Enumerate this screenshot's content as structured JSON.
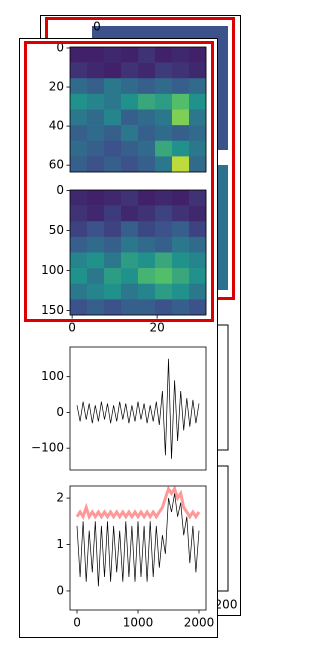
{
  "background_labels": [
    "0",
    "200"
  ],
  "chart_data": [
    {
      "type": "heatmap",
      "xlim": [
        -0.5,
        31.5
      ],
      "ylim": [
        63.5,
        -0.5
      ],
      "yticks": [
        0,
        20,
        40,
        60
      ],
      "z": [
        [
          0.1,
          0.1,
          0.12,
          0.1,
          0.15,
          0.1,
          0.12,
          0.1
        ],
        [
          0.15,
          0.12,
          0.1,
          0.15,
          0.12,
          0.18,
          0.15,
          0.12
        ],
        [
          0.35,
          0.3,
          0.4,
          0.35,
          0.3,
          0.35,
          0.3,
          0.35
        ],
        [
          0.5,
          0.45,
          0.4,
          0.5,
          0.6,
          0.55,
          0.7,
          0.5
        ],
        [
          0.4,
          0.35,
          0.45,
          0.3,
          0.35,
          0.4,
          0.8,
          0.4
        ],
        [
          0.3,
          0.35,
          0.3,
          0.4,
          0.3,
          0.35,
          0.3,
          0.35
        ],
        [
          0.35,
          0.3,
          0.25,
          0.3,
          0.35,
          0.6,
          0.5,
          0.4
        ],
        [
          0.3,
          0.25,
          0.3,
          0.25,
          0.3,
          0.4,
          0.9,
          0.35
        ]
      ]
    },
    {
      "type": "heatmap",
      "xlim": [
        -0.5,
        31.5
      ],
      "ylim": [
        155.5,
        -0.5
      ],
      "yticks": [
        0,
        50,
        100,
        150
      ],
      "xticks": [
        0,
        20
      ],
      "z": [
        [
          0.12,
          0.1,
          0.12,
          0.15,
          0.1,
          0.12,
          0.1,
          0.15
        ],
        [
          0.15,
          0.12,
          0.18,
          0.12,
          0.15,
          0.2,
          0.15,
          0.12
        ],
        [
          0.2,
          0.25,
          0.2,
          0.3,
          0.22,
          0.25,
          0.3,
          0.2
        ],
        [
          0.3,
          0.35,
          0.3,
          0.4,
          0.35,
          0.3,
          0.4,
          0.35
        ],
        [
          0.45,
          0.5,
          0.4,
          0.55,
          0.5,
          0.6,
          0.5,
          0.45
        ],
        [
          0.5,
          0.4,
          0.55,
          0.5,
          0.65,
          0.7,
          0.6,
          0.5
        ],
        [
          0.4,
          0.45,
          0.5,
          0.4,
          0.45,
          0.55,
          0.5,
          0.4
        ],
        [
          0.25,
          0.3,
          0.25,
          0.3,
          0.3,
          0.25,
          0.3,
          0.25
        ]
      ]
    },
    {
      "type": "line",
      "xlim": [
        -115,
        2115
      ],
      "ylim": [
        -161,
        183
      ],
      "yticks": [
        100,
        0,
        {
          "value": -100,
          "label": "−100"
        }
      ],
      "x": [
        0,
        50,
        100,
        150,
        200,
        250,
        300,
        350,
        400,
        450,
        500,
        550,
        600,
        650,
        700,
        750,
        800,
        850,
        900,
        950,
        1000,
        1050,
        1100,
        1150,
        1200,
        1250,
        1300,
        1350,
        1400,
        1450,
        1500,
        1550,
        1600,
        1650,
        1700,
        1750,
        1800,
        1850,
        1900,
        1950,
        2000
      ],
      "series": [
        {
          "color": "#000000",
          "values": [
            20,
            -25,
            30,
            -20,
            25,
            -30,
            20,
            -25,
            30,
            -20,
            25,
            -30,
            20,
            -25,
            30,
            -20,
            25,
            -30,
            20,
            -25,
            30,
            -20,
            25,
            -30,
            20,
            -25,
            30,
            -35,
            60,
            -120,
            150,
            -130,
            90,
            -80,
            60,
            -50,
            40,
            -40,
            35,
            -30,
            25
          ]
        }
      ]
    },
    {
      "type": "line",
      "xlim": [
        -115,
        2115
      ],
      "ylim": [
        -0.41,
        2.26
      ],
      "yticks": [
        0,
        1,
        2
      ],
      "xticks": [
        0,
        1000,
        2000
      ],
      "x": [
        0,
        50,
        100,
        150,
        200,
        250,
        300,
        350,
        400,
        450,
        500,
        550,
        600,
        650,
        700,
        750,
        800,
        850,
        900,
        950,
        1000,
        1050,
        1100,
        1150,
        1200,
        1250,
        1300,
        1350,
        1400,
        1450,
        1500,
        1550,
        1600,
        1650,
        1700,
        1750,
        1800,
        1850,
        1900,
        1950,
        2000
      ],
      "series": [
        {
          "color": "#ff5555",
          "values": [
            1.6,
            1.7,
            1.6,
            1.8,
            1.6,
            1.7,
            1.6,
            1.7,
            1.6,
            1.7,
            1.6,
            1.7,
            1.6,
            1.7,
            1.6,
            1.7,
            1.6,
            1.7,
            1.6,
            1.7,
            1.6,
            1.7,
            1.6,
            1.7,
            1.6,
            1.7,
            1.6,
            1.7,
            1.8,
            2.0,
            2.2,
            2.1,
            2.2,
            2.0,
            2.1,
            1.8,
            1.7,
            1.6,
            1.7,
            1.6,
            1.7
          ]
        },
        {
          "color": "#000000",
          "values": [
            1.4,
            0.3,
            1.5,
            0.2,
            1.3,
            0.4,
            1.5,
            0.1,
            1.4,
            0.3,
            1.5,
            0.2,
            1.4,
            0.4,
            1.3,
            0.2,
            1.5,
            0.3,
            1.4,
            0.2,
            1.5,
            0.3,
            1.4,
            0.2,
            1.5,
            0.3,
            1.4,
            0.5,
            1.2,
            0.8,
            2.0,
            1.7,
            2.1,
            1.6,
            1.9,
            1.2,
            1.6,
            0.6,
            1.4,
            0.4,
            1.3
          ]
        }
      ]
    }
  ]
}
